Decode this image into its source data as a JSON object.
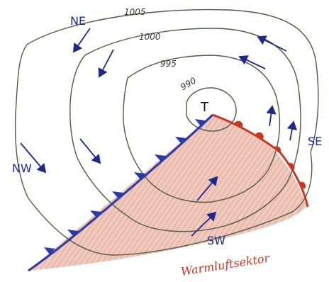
{
  "colors": {
    "isobar": "#4f5a48",
    "cold_front": "#2a3aa6",
    "warm_front": "#c8361f",
    "warm_sector_fill": "#d9a08f",
    "wind_arrow": "#1b2a8c"
  },
  "labels": {
    "low": "T",
    "warm_sector": "Warmluftsektor",
    "ne": "NE",
    "nw": "NW",
    "se": "SE",
    "sw": "SW"
  },
  "isobars": {
    "p1005": "1005",
    "p1000": "1000",
    "p995": "995",
    "p990": "990"
  },
  "icons": {
    "wind": "wind-arrow-icon",
    "cold_front_symbol": "triangle-icon",
    "warm_front_symbol": "semicircle-icon"
  }
}
